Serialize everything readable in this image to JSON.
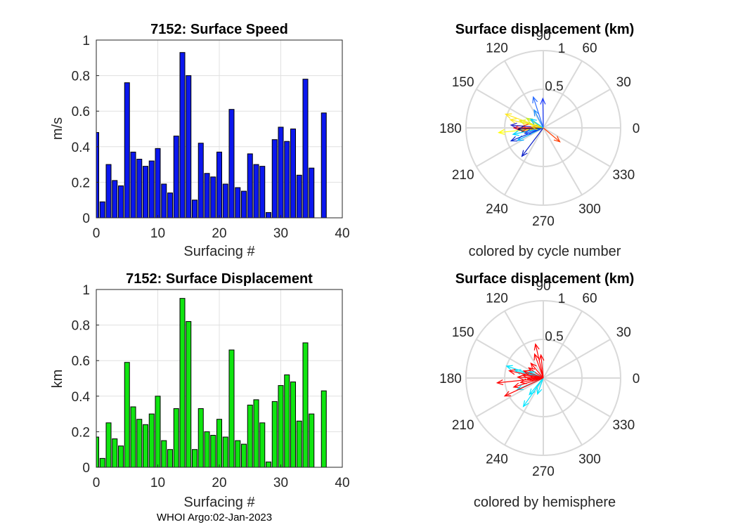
{
  "footer": "WHOI Argo:02-Jan-2023",
  "chart_data": [
    {
      "type": "bar",
      "title": "7152: Surface Speed",
      "xlabel": "Surfacing #",
      "ylabel": "m/s",
      "xlim": [
        0,
        40
      ],
      "ylim": [
        0,
        1
      ],
      "xticks": [
        "0",
        "10",
        "20",
        "30",
        "40"
      ],
      "yticks": [
        "0",
        "0.2",
        "0.4",
        "0.6",
        "0.8",
        "1"
      ],
      "grid": true,
      "color": "#0b17ee",
      "x": [
        0,
        1,
        2,
        3,
        4,
        5,
        6,
        7,
        8,
        9,
        10,
        11,
        12,
        13,
        14,
        15,
        16,
        17,
        18,
        19,
        20,
        21,
        22,
        23,
        24,
        25,
        26,
        27,
        28,
        29,
        30,
        31,
        32,
        33,
        34,
        35,
        37
      ],
      "values": [
        0.48,
        0.09,
        0.3,
        0.21,
        0.18,
        0.76,
        0.37,
        0.33,
        0.29,
        0.32,
        0.39,
        0.19,
        0.14,
        0.46,
        0.93,
        0.8,
        0.1,
        0.42,
        0.25,
        0.23,
        0.37,
        0.19,
        0.61,
        0.17,
        0.15,
        0.36,
        0.3,
        0.29,
        0.03,
        0.44,
        0.51,
        0.43,
        0.5,
        0.24,
        0.78,
        0.28,
        0.59
      ]
    },
    {
      "type": "bar",
      "title": "7152: Surface Displacement",
      "xlabel": "Surfacing #",
      "ylabel": "km",
      "xlim": [
        0,
        40
      ],
      "ylim": [
        0,
        1
      ],
      "xticks": [
        "0",
        "10",
        "20",
        "30",
        "40"
      ],
      "yticks": [
        "0",
        "0.2",
        "0.4",
        "0.6",
        "0.8",
        "1"
      ],
      "grid": true,
      "color": "#10e510",
      "x": [
        0,
        1,
        2,
        3,
        4,
        5,
        6,
        7,
        8,
        9,
        10,
        11,
        12,
        13,
        14,
        15,
        16,
        17,
        18,
        19,
        20,
        21,
        22,
        23,
        24,
        25,
        26,
        27,
        28,
        29,
        30,
        31,
        32,
        33,
        34,
        35,
        37
      ],
      "values": [
        0.17,
        0.05,
        0.25,
        0.16,
        0.12,
        0.59,
        0.34,
        0.27,
        0.24,
        0.3,
        0.4,
        0.15,
        0.1,
        0.33,
        0.95,
        0.82,
        0.1,
        0.33,
        0.2,
        0.18,
        0.27,
        0.17,
        0.66,
        0.15,
        0.13,
        0.35,
        0.38,
        0.25,
        0.03,
        0.37,
        0.46,
        0.52,
        0.48,
        0.26,
        0.7,
        0.3,
        0.43
      ]
    },
    {
      "type": "polar-compass",
      "title": "Surface displacement (km)",
      "caption": "colored by cycle number",
      "rticks": [
        "0.5",
        "1"
      ],
      "thetaticks": [
        "0",
        "30",
        "60",
        "90",
        "120",
        "150",
        "180",
        "210",
        "240",
        "270",
        "300",
        "330"
      ],
      "rlim": [
        0,
        1
      ],
      "arrows": [
        {
          "angle_deg": 91,
          "r": 0.38,
          "color": "#1e3cff"
        },
        {
          "angle_deg": 117,
          "r": 0.26,
          "color": "#1e90ff"
        },
        {
          "angle_deg": 108,
          "r": 0.42,
          "color": "#2a6cff"
        },
        {
          "angle_deg": 160,
          "r": 0.52,
          "color": "#ffe81e"
        },
        {
          "angle_deg": 166,
          "r": 0.44,
          "color": "#ffe81e"
        },
        {
          "angle_deg": 163,
          "r": 0.32,
          "color": "#e6f01e"
        },
        {
          "angle_deg": 150,
          "r": 0.25,
          "color": "#c8f028"
        },
        {
          "angle_deg": 175,
          "r": 0.27,
          "color": "#ff4a00"
        },
        {
          "angle_deg": 186,
          "r": 0.58,
          "color": "#ffff00"
        },
        {
          "angle_deg": 180,
          "r": 0.38,
          "color": "#ff0000"
        },
        {
          "angle_deg": 190,
          "r": 0.28,
          "color": "#ff3c00"
        },
        {
          "angle_deg": 206,
          "r": 0.37,
          "color": "#00aaff"
        },
        {
          "angle_deg": 202,
          "r": 0.45,
          "color": "#0a28d0"
        },
        {
          "angle_deg": 192,
          "r": 0.4,
          "color": "#00d4ff"
        },
        {
          "angle_deg": 197,
          "r": 0.25,
          "color": "#1450ff"
        },
        {
          "angle_deg": 233,
          "r": 0.46,
          "color": "#0a1ec8"
        },
        {
          "angle_deg": 183,
          "r": 0.33,
          "color": "#14145a"
        },
        {
          "angle_deg": 175,
          "r": 0.42,
          "color": "#2d2dcc"
        },
        {
          "angle_deg": 175,
          "r": 0.15,
          "color": "#e6c800"
        },
        {
          "angle_deg": 320,
          "r": 0.28,
          "color": "#ff3c00"
        },
        {
          "angle_deg": 145,
          "r": 0.2,
          "color": "#00c8ff"
        }
      ]
    },
    {
      "type": "polar-compass",
      "title": "Surface displacement (km)",
      "caption": "colored by hemisphere",
      "rticks": [
        "0.5",
        "1"
      ],
      "thetaticks": [
        "0",
        "30",
        "60",
        "90",
        "120",
        "150",
        "180",
        "210",
        "240",
        "270",
        "300",
        "330"
      ],
      "rlim": [
        0,
        1
      ],
      "arrows": [
        {
          "angle_deg": 103,
          "r": 0.45,
          "color": "#ff0000"
        },
        {
          "angle_deg": 110,
          "r": 0.33,
          "color": "#ff0000"
        },
        {
          "angle_deg": 96,
          "r": 0.3,
          "color": "#ff0000"
        },
        {
          "angle_deg": 145,
          "r": 0.23,
          "color": "#ff0000"
        },
        {
          "angle_deg": 162,
          "r": 0.5,
          "color": "#00e5ff"
        },
        {
          "angle_deg": 165,
          "r": 0.38,
          "color": "#00e5ff"
        },
        {
          "angle_deg": 156,
          "r": 0.2,
          "color": "#00e5ff"
        },
        {
          "angle_deg": 186,
          "r": 0.6,
          "color": "#ff0000"
        },
        {
          "angle_deg": 178,
          "r": 0.33,
          "color": "#ff0000"
        },
        {
          "angle_deg": 197,
          "r": 0.4,
          "color": "#ff0000"
        },
        {
          "angle_deg": 204,
          "r": 0.37,
          "color": "#00e5ff"
        },
        {
          "angle_deg": 191,
          "r": 0.3,
          "color": "#ff0000"
        },
        {
          "angle_deg": 172,
          "r": 0.27,
          "color": "#ff0000"
        },
        {
          "angle_deg": 183,
          "r": 0.2,
          "color": "#ff0000"
        },
        {
          "angle_deg": 235,
          "r": 0.45,
          "color": "#00e5ff"
        },
        {
          "angle_deg": 230,
          "r": 0.28,
          "color": "#00e5ff"
        },
        {
          "angle_deg": 205,
          "r": 0.55,
          "color": "#ff0000"
        },
        {
          "angle_deg": 168,
          "r": 0.45,
          "color": "#ff0000"
        },
        {
          "angle_deg": 250,
          "r": 0.22,
          "color": "#00e5ff"
        },
        {
          "angle_deg": 130,
          "r": 0.25,
          "color": "#ff0000"
        },
        {
          "angle_deg": 160,
          "r": 0.27,
          "color": "#ff0000"
        }
      ]
    }
  ]
}
